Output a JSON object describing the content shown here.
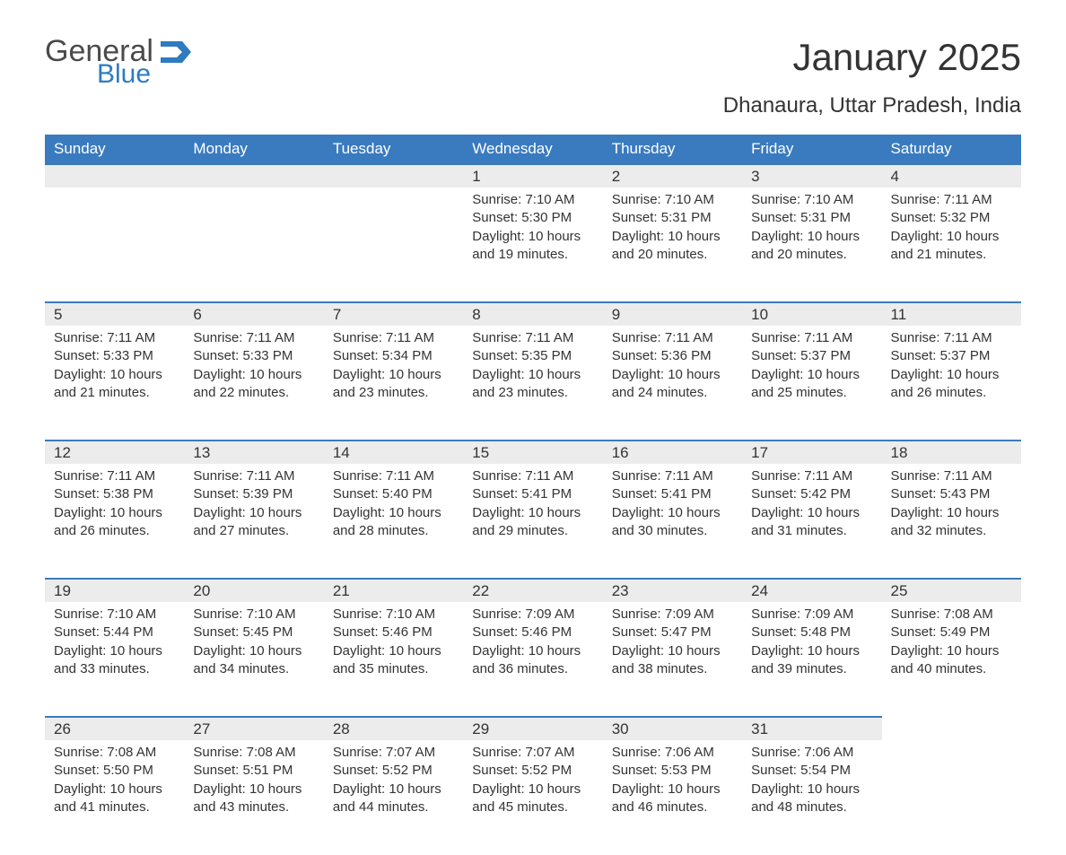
{
  "logo": {
    "general": "General",
    "blue": "Blue",
    "flag_color": "#2e7bc0"
  },
  "title": "January 2025",
  "subtitle": "Dhanaura, Uttar Pradesh, India",
  "day_headers": [
    "Sunday",
    "Monday",
    "Tuesday",
    "Wednesday",
    "Thursday",
    "Friday",
    "Saturday"
  ],
  "colors": {
    "header_bg": "#3a7bbf",
    "header_text": "#ffffff",
    "daynum_bg": "#ececec",
    "row_border": "#3a7bbf",
    "body_text": "#333333",
    "page_bg": "#ffffff"
  },
  "typography": {
    "title_fontsize": 42,
    "subtitle_fontsize": 24,
    "header_fontsize": 17,
    "daynum_fontsize": 17,
    "body_fontsize": 15,
    "font_family": "Arial"
  },
  "layout": {
    "columns": 7,
    "rows": 5,
    "start_day_index": 3
  },
  "weeks": [
    [
      null,
      null,
      null,
      {
        "n": "1",
        "sr": "Sunrise: 7:10 AM",
        "ss": "Sunset: 5:30 PM",
        "d1": "Daylight: 10 hours",
        "d2": "and 19 minutes."
      },
      {
        "n": "2",
        "sr": "Sunrise: 7:10 AM",
        "ss": "Sunset: 5:31 PM",
        "d1": "Daylight: 10 hours",
        "d2": "and 20 minutes."
      },
      {
        "n": "3",
        "sr": "Sunrise: 7:10 AM",
        "ss": "Sunset: 5:31 PM",
        "d1": "Daylight: 10 hours",
        "d2": "and 20 minutes."
      },
      {
        "n": "4",
        "sr": "Sunrise: 7:11 AM",
        "ss": "Sunset: 5:32 PM",
        "d1": "Daylight: 10 hours",
        "d2": "and 21 minutes."
      }
    ],
    [
      {
        "n": "5",
        "sr": "Sunrise: 7:11 AM",
        "ss": "Sunset: 5:33 PM",
        "d1": "Daylight: 10 hours",
        "d2": "and 21 minutes."
      },
      {
        "n": "6",
        "sr": "Sunrise: 7:11 AM",
        "ss": "Sunset: 5:33 PM",
        "d1": "Daylight: 10 hours",
        "d2": "and 22 minutes."
      },
      {
        "n": "7",
        "sr": "Sunrise: 7:11 AM",
        "ss": "Sunset: 5:34 PM",
        "d1": "Daylight: 10 hours",
        "d2": "and 23 minutes."
      },
      {
        "n": "8",
        "sr": "Sunrise: 7:11 AM",
        "ss": "Sunset: 5:35 PM",
        "d1": "Daylight: 10 hours",
        "d2": "and 23 minutes."
      },
      {
        "n": "9",
        "sr": "Sunrise: 7:11 AM",
        "ss": "Sunset: 5:36 PM",
        "d1": "Daylight: 10 hours",
        "d2": "and 24 minutes."
      },
      {
        "n": "10",
        "sr": "Sunrise: 7:11 AM",
        "ss": "Sunset: 5:37 PM",
        "d1": "Daylight: 10 hours",
        "d2": "and 25 minutes."
      },
      {
        "n": "11",
        "sr": "Sunrise: 7:11 AM",
        "ss": "Sunset: 5:37 PM",
        "d1": "Daylight: 10 hours",
        "d2": "and 26 minutes."
      }
    ],
    [
      {
        "n": "12",
        "sr": "Sunrise: 7:11 AM",
        "ss": "Sunset: 5:38 PM",
        "d1": "Daylight: 10 hours",
        "d2": "and 26 minutes."
      },
      {
        "n": "13",
        "sr": "Sunrise: 7:11 AM",
        "ss": "Sunset: 5:39 PM",
        "d1": "Daylight: 10 hours",
        "d2": "and 27 minutes."
      },
      {
        "n": "14",
        "sr": "Sunrise: 7:11 AM",
        "ss": "Sunset: 5:40 PM",
        "d1": "Daylight: 10 hours",
        "d2": "and 28 minutes."
      },
      {
        "n": "15",
        "sr": "Sunrise: 7:11 AM",
        "ss": "Sunset: 5:41 PM",
        "d1": "Daylight: 10 hours",
        "d2": "and 29 minutes."
      },
      {
        "n": "16",
        "sr": "Sunrise: 7:11 AM",
        "ss": "Sunset: 5:41 PM",
        "d1": "Daylight: 10 hours",
        "d2": "and 30 minutes."
      },
      {
        "n": "17",
        "sr": "Sunrise: 7:11 AM",
        "ss": "Sunset: 5:42 PM",
        "d1": "Daylight: 10 hours",
        "d2": "and 31 minutes."
      },
      {
        "n": "18",
        "sr": "Sunrise: 7:11 AM",
        "ss": "Sunset: 5:43 PM",
        "d1": "Daylight: 10 hours",
        "d2": "and 32 minutes."
      }
    ],
    [
      {
        "n": "19",
        "sr": "Sunrise: 7:10 AM",
        "ss": "Sunset: 5:44 PM",
        "d1": "Daylight: 10 hours",
        "d2": "and 33 minutes."
      },
      {
        "n": "20",
        "sr": "Sunrise: 7:10 AM",
        "ss": "Sunset: 5:45 PM",
        "d1": "Daylight: 10 hours",
        "d2": "and 34 minutes."
      },
      {
        "n": "21",
        "sr": "Sunrise: 7:10 AM",
        "ss": "Sunset: 5:46 PM",
        "d1": "Daylight: 10 hours",
        "d2": "and 35 minutes."
      },
      {
        "n": "22",
        "sr": "Sunrise: 7:09 AM",
        "ss": "Sunset: 5:46 PM",
        "d1": "Daylight: 10 hours",
        "d2": "and 36 minutes."
      },
      {
        "n": "23",
        "sr": "Sunrise: 7:09 AM",
        "ss": "Sunset: 5:47 PM",
        "d1": "Daylight: 10 hours",
        "d2": "and 38 minutes."
      },
      {
        "n": "24",
        "sr": "Sunrise: 7:09 AM",
        "ss": "Sunset: 5:48 PM",
        "d1": "Daylight: 10 hours",
        "d2": "and 39 minutes."
      },
      {
        "n": "25",
        "sr": "Sunrise: 7:08 AM",
        "ss": "Sunset: 5:49 PM",
        "d1": "Daylight: 10 hours",
        "d2": "and 40 minutes."
      }
    ],
    [
      {
        "n": "26",
        "sr": "Sunrise: 7:08 AM",
        "ss": "Sunset: 5:50 PM",
        "d1": "Daylight: 10 hours",
        "d2": "and 41 minutes."
      },
      {
        "n": "27",
        "sr": "Sunrise: 7:08 AM",
        "ss": "Sunset: 5:51 PM",
        "d1": "Daylight: 10 hours",
        "d2": "and 43 minutes."
      },
      {
        "n": "28",
        "sr": "Sunrise: 7:07 AM",
        "ss": "Sunset: 5:52 PM",
        "d1": "Daylight: 10 hours",
        "d2": "and 44 minutes."
      },
      {
        "n": "29",
        "sr": "Sunrise: 7:07 AM",
        "ss": "Sunset: 5:52 PM",
        "d1": "Daylight: 10 hours",
        "d2": "and 45 minutes."
      },
      {
        "n": "30",
        "sr": "Sunrise: 7:06 AM",
        "ss": "Sunset: 5:53 PM",
        "d1": "Daylight: 10 hours",
        "d2": "and 46 minutes."
      },
      {
        "n": "31",
        "sr": "Sunrise: 7:06 AM",
        "ss": "Sunset: 5:54 PM",
        "d1": "Daylight: 10 hours",
        "d2": "and 48 minutes."
      },
      null
    ]
  ]
}
